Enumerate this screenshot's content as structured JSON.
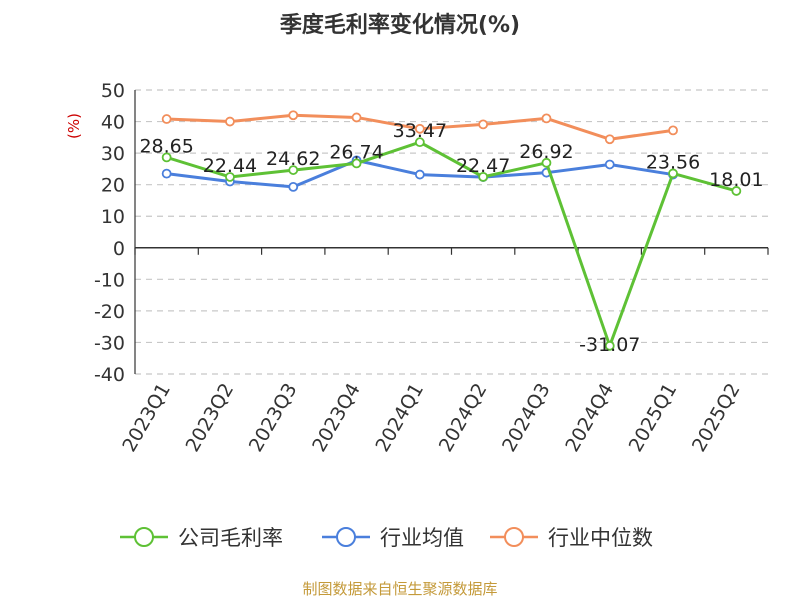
{
  "chart_data": {
    "type": "line",
    "title": "季度毛利率变化情况(%)",
    "ylabel": "(%)",
    "ylim": [
      -40,
      50
    ],
    "yticks": [
      50,
      40,
      30,
      20,
      10,
      0,
      -10,
      -20,
      -30,
      -40
    ],
    "grid": true,
    "legend_position": "bottom",
    "categories": [
      "2023Q1",
      "2023Q2",
      "2023Q3",
      "2023Q4",
      "2024Q1",
      "2024Q2",
      "2024Q3",
      "2024Q4",
      "2025Q1",
      "2025Q2"
    ],
    "series": [
      {
        "name": "公司毛利率",
        "color": "#5ec135",
        "values": [
          28.65,
          22.44,
          24.62,
          26.74,
          33.47,
          22.47,
          26.92,
          -31.07,
          23.56,
          18.01
        ],
        "labels": [
          "28.65",
          "22.44",
          "24.62",
          "26.74",
          "33.47",
          "22.47",
          "26.92",
          "-31.07",
          "23.56",
          "18.01"
        ]
      },
      {
        "name": "行业均值",
        "color": "#4a7fdc",
        "values": [
          23.5,
          21.0,
          19.3,
          27.7,
          23.2,
          22.4,
          23.8,
          26.4,
          23.2,
          null
        ]
      },
      {
        "name": "行业中位数",
        "color": "#f28e5b",
        "values": [
          40.8,
          40.0,
          42.0,
          41.3,
          37.7,
          39.1,
          41.0,
          34.4,
          37.2,
          null
        ]
      }
    ]
  },
  "source_text": "制图数据来自恒生聚源数据库",
  "colors": {
    "unit_label": "#cc0000",
    "source_text": "#c49a3a",
    "axis": "#333333",
    "grid": "#c8c8c8"
  }
}
